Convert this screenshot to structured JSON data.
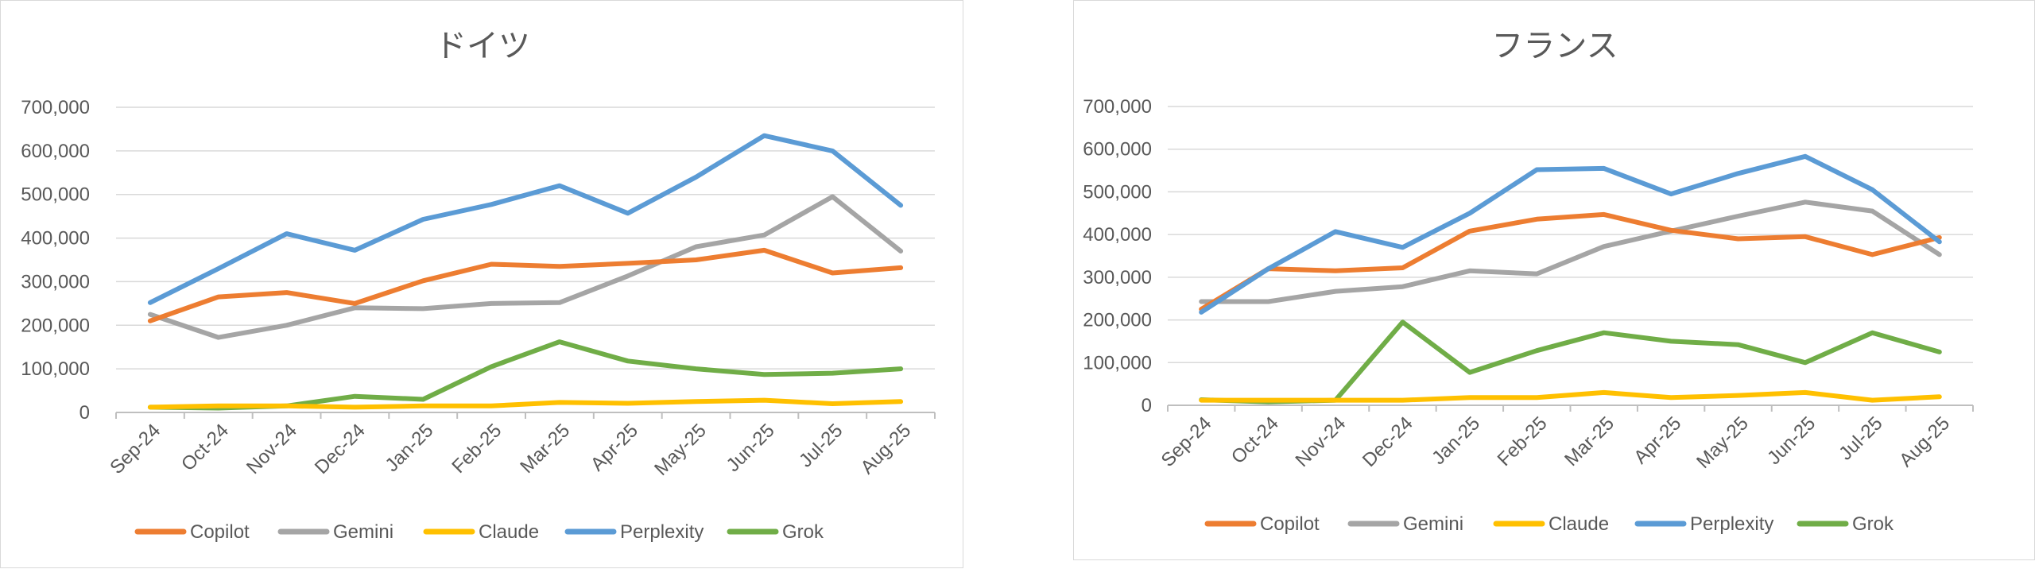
{
  "colors": {
    "Copilot": "#ED7D31",
    "Gemini": "#A5A5A5",
    "Claude": "#FFC000",
    "Perplexity": "#5B9BD5",
    "Grok": "#70AD47"
  },
  "chart_data": [
    {
      "type": "line",
      "title": "ドイツ",
      "categories": [
        "Sep-24",
        "Oct-24",
        "Nov-24",
        "Dec-24",
        "Jan-25",
        "Feb-25",
        "Mar-25",
        "Apr-25",
        "May-25",
        "Jun-25",
        "Jul-25",
        "Aug-25"
      ],
      "ylim": [
        0,
        700000
      ],
      "yticks": [
        "0",
        "100,000",
        "200,000",
        "300,000",
        "400,000",
        "500,000",
        "600,000",
        "700,000"
      ],
      "legend": "bottom",
      "series": [
        {
          "name": "Copilot",
          "values": [
            210000,
            265000,
            275000,
            250000,
            302000,
            340000,
            335000,
            342000,
            350000,
            372000,
            320000,
            332000
          ]
        },
        {
          "name": "Gemini",
          "values": [
            225000,
            172000,
            200000,
            240000,
            238000,
            250000,
            252000,
            313000,
            380000,
            407000,
            495000,
            370000
          ]
        },
        {
          "name": "Claude",
          "values": [
            12000,
            15000,
            15000,
            12000,
            15000,
            15000,
            23000,
            21000,
            25000,
            28000,
            20000,
            25000
          ]
        },
        {
          "name": "Perplexity",
          "values": [
            252000,
            330000,
            410000,
            372000,
            443000,
            477000,
            520000,
            457000,
            540000,
            635000,
            600000,
            475000
          ]
        },
        {
          "name": "Grok",
          "values": [
            12000,
            10000,
            15000,
            37000,
            30000,
            105000,
            162000,
            118000,
            100000,
            87000,
            90000,
            100000
          ]
        }
      ]
    },
    {
      "type": "line",
      "title": "フランス",
      "categories": [
        "Sep-24",
        "Oct-24",
        "Nov-24",
        "Dec-24",
        "Jan-25",
        "Feb-25",
        "Mar-25",
        "Apr-25",
        "May-25",
        "Jun-25",
        "Jul-25",
        "Aug-25"
      ],
      "ylim": [
        0,
        700000
      ],
      "yticks": [
        "0",
        "100,000",
        "200,000",
        "300,000",
        "400,000",
        "500,000",
        "600,000",
        "700,000"
      ],
      "legend": "bottom",
      "series": [
        {
          "name": "Copilot",
          "values": [
            225000,
            320000,
            315000,
            322000,
            408000,
            436000,
            447000,
            410000,
            390000,
            395000,
            353000,
            393000
          ]
        },
        {
          "name": "Gemini",
          "values": [
            243000,
            243000,
            267000,
            278000,
            315000,
            308000,
            372000,
            408000,
            443000,
            476000,
            455000,
            353000
          ]
        },
        {
          "name": "Claude",
          "values": [
            12000,
            12000,
            12000,
            12000,
            18000,
            18000,
            30000,
            18000,
            23000,
            30000,
            12000,
            20000
          ]
        },
        {
          "name": "Perplexity",
          "values": [
            218000,
            320000,
            407000,
            370000,
            450000,
            552000,
            555000,
            495000,
            543000,
            583000,
            505000,
            383000
          ]
        },
        {
          "name": "Grok",
          "values": [
            13000,
            8000,
            12000,
            195000,
            77000,
            128000,
            170000,
            150000,
            142000,
            100000,
            170000,
            125000
          ]
        }
      ]
    }
  ]
}
